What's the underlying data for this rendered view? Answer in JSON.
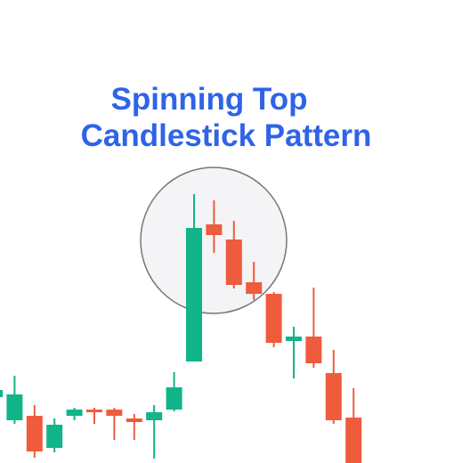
{
  "chart_data": {
    "type": "candlestick",
    "title": [
      "Spinning Top",
      "Candlestick Pattern"
    ],
    "title_color": "#2f63e8",
    "up_color": "#12b48a",
    "down_color": "#ef5b3d",
    "ylim": [
      0,
      520
    ],
    "open": [
      74,
      48,
      53,
      17,
      53,
      60,
      60,
      50,
      48,
      60,
      114,
      268,
      251,
      203,
      190,
      137,
      142,
      101,
      51
    ],
    "close": [
      82,
      77,
      13,
      43,
      60,
      57,
      53,
      46,
      57,
      85,
      264,
      256,
      200,
      190,
      135,
      142,
      112,
      48,
      0
    ],
    "high": [
      83,
      98,
      65,
      50,
      62,
      62,
      62,
      55,
      65,
      102,
      302,
      295,
      272,
      226,
      192,
      153,
      197,
      127,
      84
    ],
    "low": [
      72,
      44,
      6,
      12,
      48,
      44,
      26,
      26,
      5,
      58,
      114,
      236,
      196,
      183,
      130,
      95,
      107,
      44,
      0
    ]
  }
}
